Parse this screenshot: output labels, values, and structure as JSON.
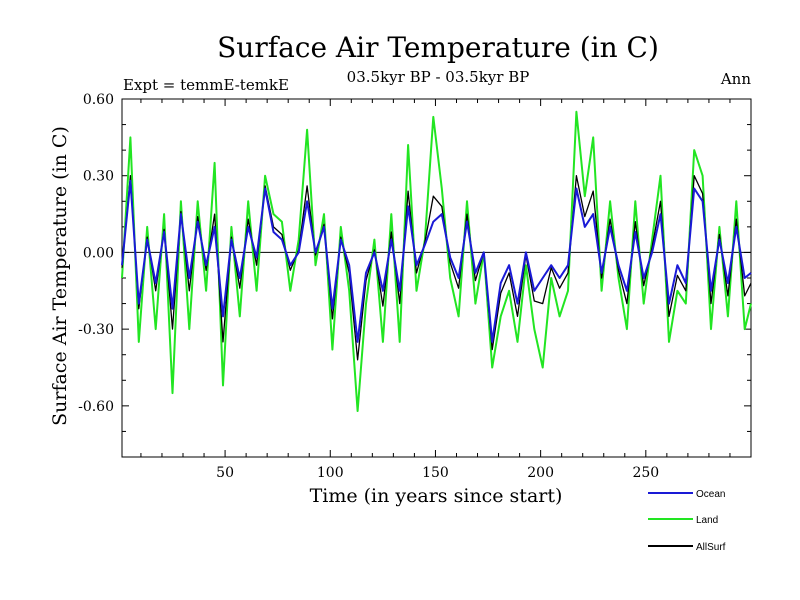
{
  "chart_data": {
    "type": "line",
    "title": "Surface Air Temperature (in C)",
    "subtitle": "03.5kyr BP - 03.5kyr BP",
    "left_label": "Expt = temmE-temkE",
    "right_label": "Ann",
    "xlabel": "Time (in years since start)",
    "ylabel": "Surface Air Temperature (in C)",
    "xlim": [
      1,
      300
    ],
    "ylim": [
      -0.8,
      0.6
    ],
    "xticks": [
      50,
      100,
      150,
      200,
      250
    ],
    "xticklabels": [
      "50",
      "100",
      "150",
      "200",
      "250"
    ],
    "yticks": [
      0.6,
      0.3,
      0.0,
      -0.3,
      -0.6
    ],
    "yticklabels": [
      "0.60",
      "0.30",
      "0.00",
      "-0.30",
      "-0.60"
    ],
    "zero_line": true,
    "legend_position": "bottom-right",
    "series": [
      {
        "name": "Ocean",
        "color": "#1a1ad6",
        "x": [
          1,
          5,
          9,
          13,
          17,
          21,
          25,
          29,
          33,
          37,
          41,
          45,
          49,
          53,
          57,
          61,
          65,
          69,
          73,
          77,
          81,
          85,
          89,
          93,
          97,
          101,
          105,
          109,
          113,
          117,
          121,
          125,
          129,
          133,
          137,
          141,
          145,
          149,
          153,
          157,
          161,
          165,
          169,
          173,
          177,
          181,
          185,
          189,
          193,
          197,
          201,
          205,
          209,
          213,
          217,
          221,
          225,
          229,
          233,
          237,
          241,
          245,
          249,
          253,
          257,
          261,
          265,
          269,
          273,
          277,
          281,
          285,
          289,
          293,
          297,
          300
        ],
        "values": [
          -0.05,
          0.28,
          -0.2,
          0.05,
          -0.12,
          0.08,
          -0.22,
          0.15,
          -0.1,
          0.12,
          -0.05,
          0.1,
          -0.25,
          0.05,
          -0.1,
          0.1,
          -0.02,
          0.25,
          0.08,
          0.05,
          -0.05,
          0.0,
          0.2,
          0.0,
          0.1,
          -0.22,
          0.05,
          -0.05,
          -0.35,
          -0.08,
          0.0,
          -0.15,
          0.05,
          -0.15,
          0.18,
          -0.05,
          0.03,
          0.12,
          0.15,
          -0.02,
          -0.1,
          0.12,
          -0.08,
          0.0,
          -0.35,
          -0.12,
          -0.05,
          -0.2,
          0.0,
          -0.15,
          -0.1,
          -0.05,
          -0.1,
          -0.05,
          0.25,
          0.1,
          0.15,
          -0.08,
          0.1,
          -0.05,
          -0.15,
          0.08,
          -0.1,
          0.0,
          0.15,
          -0.2,
          -0.05,
          -0.12,
          0.25,
          0.2,
          -0.15,
          0.05,
          -0.12,
          0.1,
          -0.1,
          -0.08
        ]
      },
      {
        "name": "Land",
        "color": "#22e522",
        "x": [
          1,
          5,
          9,
          13,
          17,
          21,
          25,
          29,
          33,
          37,
          41,
          45,
          49,
          53,
          57,
          61,
          65,
          69,
          73,
          77,
          81,
          85,
          89,
          93,
          97,
          101,
          105,
          109,
          113,
          117,
          121,
          125,
          129,
          133,
          137,
          141,
          145,
          149,
          153,
          157,
          161,
          165,
          169,
          173,
          177,
          181,
          185,
          189,
          193,
          197,
          201,
          205,
          209,
          213,
          217,
          221,
          225,
          229,
          233,
          237,
          241,
          245,
          249,
          253,
          257,
          261,
          265,
          269,
          273,
          277,
          281,
          285,
          289,
          293,
          297,
          300
        ],
        "values": [
          -0.1,
          0.45,
          -0.35,
          0.1,
          -0.3,
          0.15,
          -0.55,
          0.2,
          -0.3,
          0.2,
          -0.15,
          0.35,
          -0.52,
          0.1,
          -0.25,
          0.2,
          -0.15,
          0.3,
          0.15,
          0.12,
          -0.15,
          0.05,
          0.48,
          -0.05,
          0.15,
          -0.38,
          0.1,
          -0.15,
          -0.62,
          -0.2,
          0.05,
          -0.35,
          0.15,
          -0.35,
          0.42,
          -0.15,
          0.05,
          0.53,
          0.25,
          -0.1,
          -0.25,
          0.2,
          -0.2,
          0.0,
          -0.45,
          -0.25,
          -0.15,
          -0.35,
          -0.05,
          -0.3,
          -0.45,
          -0.1,
          -0.25,
          -0.15,
          0.55,
          0.22,
          0.45,
          -0.15,
          0.2,
          -0.1,
          -0.3,
          0.2,
          -0.2,
          0.05,
          0.3,
          -0.35,
          -0.15,
          -0.2,
          0.4,
          0.3,
          -0.3,
          0.1,
          -0.25,
          0.2,
          -0.3,
          -0.2
        ]
      },
      {
        "name": "AllSurf",
        "color": "#000000",
        "x": [
          1,
          5,
          9,
          13,
          17,
          21,
          25,
          29,
          33,
          37,
          41,
          45,
          49,
          53,
          57,
          61,
          65,
          69,
          73,
          77,
          81,
          85,
          89,
          93,
          97,
          101,
          105,
          109,
          113,
          117,
          121,
          125,
          129,
          133,
          137,
          141,
          145,
          149,
          153,
          157,
          161,
          165,
          169,
          173,
          177,
          181,
          185,
          189,
          193,
          197,
          201,
          205,
          209,
          213,
          217,
          221,
          225,
          229,
          233,
          237,
          241,
          245,
          249,
          253,
          257,
          261,
          265,
          269,
          273,
          277,
          281,
          285,
          289,
          293,
          297,
          300
        ],
        "values": [
          -0.06,
          0.3,
          -0.22,
          0.06,
          -0.15,
          0.09,
          -0.3,
          0.16,
          -0.15,
          0.14,
          -0.07,
          0.15,
          -0.35,
          0.06,
          -0.14,
          0.13,
          -0.05,
          0.26,
          0.1,
          0.07,
          -0.07,
          0.01,
          0.26,
          -0.01,
          0.11,
          -0.26,
          0.06,
          -0.08,
          -0.42,
          -0.11,
          0.01,
          -0.21,
          0.08,
          -0.2,
          0.24,
          -0.08,
          0.04,
          0.22,
          0.18,
          -0.04,
          -0.14,
          0.15,
          -0.11,
          0.0,
          -0.38,
          -0.16,
          -0.08,
          -0.25,
          -0.01,
          -0.19,
          -0.2,
          -0.06,
          -0.14,
          -0.08,
          0.3,
          0.14,
          0.24,
          -0.1,
          0.13,
          -0.07,
          -0.2,
          0.12,
          -0.13,
          0.02,
          0.2,
          -0.25,
          -0.09,
          -0.15,
          0.3,
          0.23,
          -0.2,
          0.07,
          -0.17,
          0.13,
          -0.17,
          -0.12
        ]
      }
    ]
  }
}
